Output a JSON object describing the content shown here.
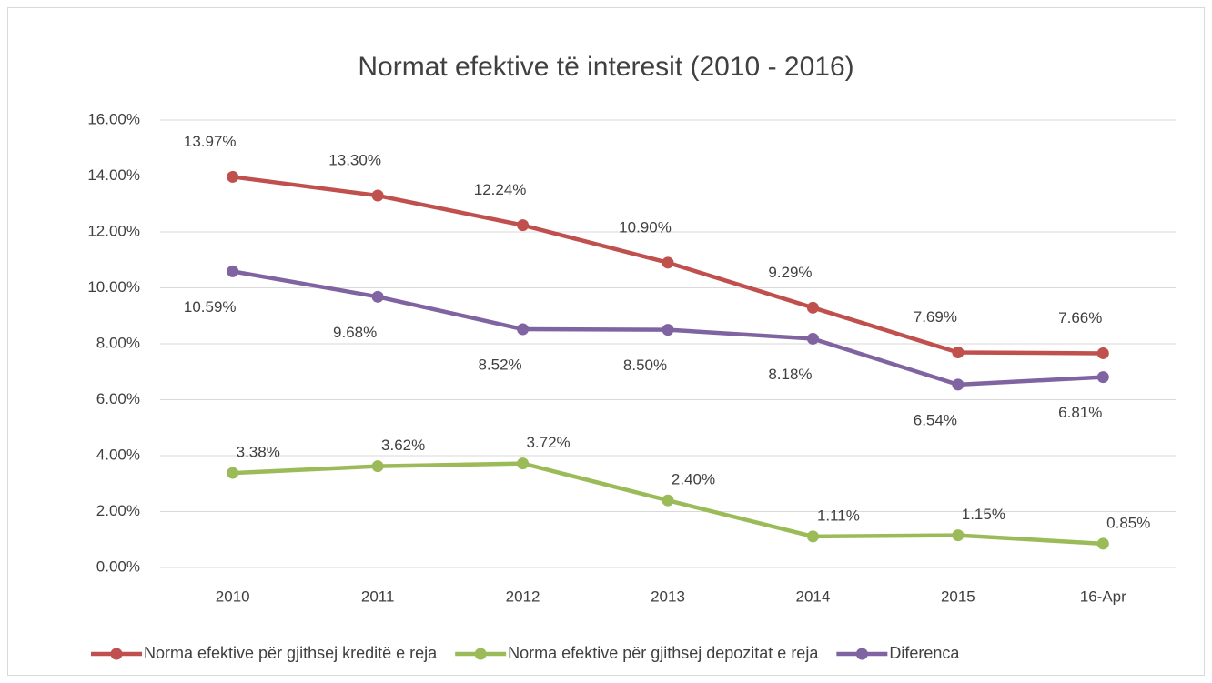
{
  "chart_data": {
    "type": "line",
    "title": "Normat efektive të interesit (2010 - 2016)",
    "categories": [
      "2010",
      "2011",
      "2012",
      "2013",
      "2014",
      "2015",
      "16-Apr"
    ],
    "series": [
      {
        "name": "Norma efektive për gjithsej kreditë e reja",
        "color": "#c0504d",
        "values": [
          13.97,
          13.3,
          12.24,
          10.9,
          9.29,
          7.69,
          7.66
        ],
        "value_labels": [
          "13.97%",
          "13.30%",
          "12.24%",
          "10.90%",
          "9.29%",
          "7.69%",
          "7.66%"
        ]
      },
      {
        "name": "Norma efektive për gjithsej depozitat e reja",
        "color": "#9bbb59",
        "values": [
          3.38,
          3.62,
          3.72,
          2.4,
          1.11,
          1.15,
          0.85
        ],
        "value_labels": [
          "3.38%",
          "3.62%",
          "3.72%",
          "2.40%",
          "1.11%",
          "1.15%",
          "0.85%"
        ]
      },
      {
        "name": "Diferenca",
        "color": "#8064a2",
        "values": [
          10.59,
          9.68,
          8.52,
          8.5,
          8.18,
          6.54,
          6.81
        ],
        "value_labels": [
          "10.59%",
          "9.68%",
          "8.52%",
          "8.50%",
          "8.18%",
          "6.54%",
          "6.81%"
        ]
      }
    ],
    "ylim": [
      0,
      16
    ],
    "yticks": [
      {
        "value": 0,
        "label": "0.00%"
      },
      {
        "value": 2,
        "label": "2.00%"
      },
      {
        "value": 4,
        "label": "4.00%"
      },
      {
        "value": 6,
        "label": "6.00%"
      },
      {
        "value": 8,
        "label": "8.00%"
      },
      {
        "value": 10,
        "label": "10.00%"
      },
      {
        "value": 12,
        "label": "12.00%"
      },
      {
        "value": 14,
        "label": "14.00%"
      },
      {
        "value": 16,
        "label": "16.00%"
      }
    ],
    "grid": true,
    "legend": "bottom"
  }
}
